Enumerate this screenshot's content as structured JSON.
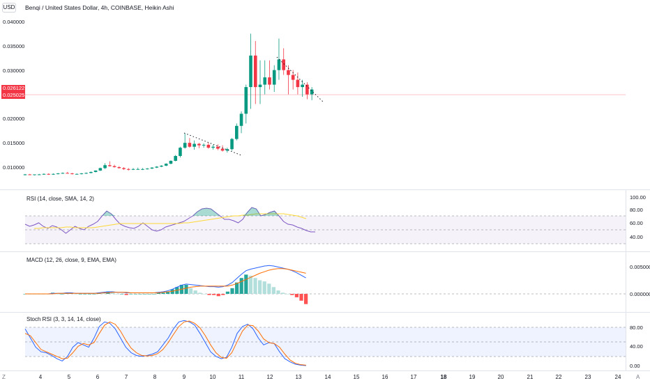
{
  "header": {
    "currency_button": "USD",
    "title": "Benqi / United States Dollar, 4h, COINBASE, Heikin Ashi"
  },
  "price_axis": {
    "ticks": [
      "0.040000",
      "0.035000",
      "0.030000",
      "0.020000",
      "0.015000",
      "0.010000"
    ],
    "badge_last": "0.026122",
    "badge_prev": "0.025025",
    "badge_color": "#f23645"
  },
  "rsi": {
    "label": "RSI (14, close, SMA, 14, 2)",
    "ticks": [
      "100.00",
      "80.00",
      "60.00",
      "40.00"
    ],
    "band_color": "#7e57c2"
  },
  "macd": {
    "label": "MACD (12, 26, close, 9, EMA, EMA)",
    "ticks": [
      "0.005000",
      "0.000000"
    ]
  },
  "stoch": {
    "label": "Stoch RSI (3, 3, 14, 14, close)",
    "ticks": [
      "80.00",
      "40.00",
      "0.00"
    ],
    "band_color": "#2962ff"
  },
  "time_axis": {
    "labels": [
      "4",
      "5",
      "6",
      "7",
      "8",
      "9",
      "10",
      "11",
      "12",
      "13",
      "14",
      "15",
      "16",
      "17",
      "18",
      "19",
      "20",
      "21",
      "22",
      "23",
      "24"
    ],
    "bold": [
      "18"
    ]
  },
  "corner": {
    "left_icon": "Z",
    "right_icon": "A"
  },
  "colors": {
    "up": "#089981",
    "down": "#f23645",
    "rsi_line": "#7e57c2",
    "rsi_ma": "#fdd835",
    "macd_line": "#2962ff",
    "signal_line": "#ff6d00",
    "hist_up": "#26a69a",
    "hist_up_light": "#b2dfdb",
    "hist_down": "#ff5252"
  }
}
